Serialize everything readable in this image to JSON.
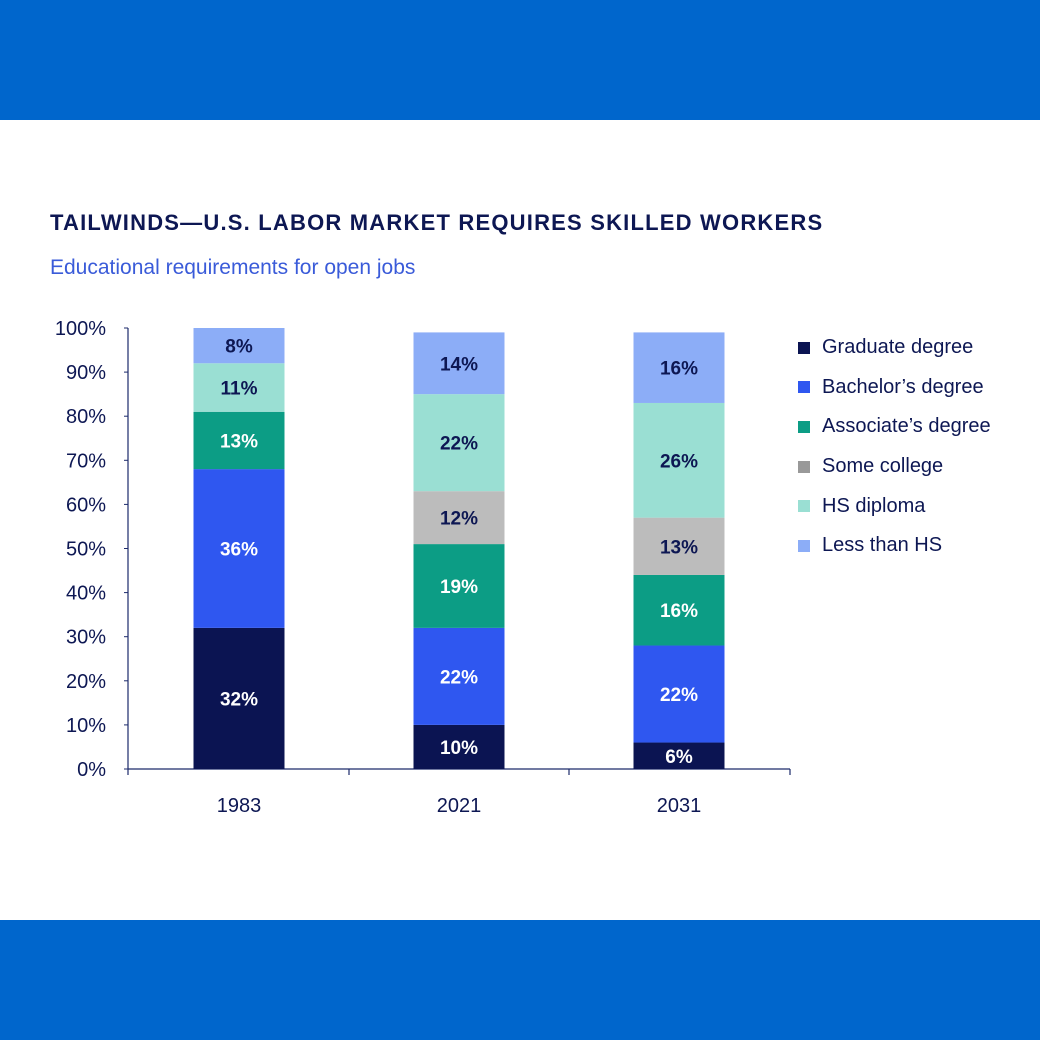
{
  "header": {
    "title": "TAILWINDS—U.S. LABOR MARKET REQUIRES SKILLED WORKERS",
    "subtitle": "Educational requirements for open jobs"
  },
  "colors": {
    "band": "#0066cc",
    "axis": "#1c2a6b",
    "text_dark": "#0d1753"
  },
  "chart_data": {
    "type": "bar",
    "stacked": true,
    "title": "TAILWINDS—U.S. LABOR MARKET REQUIRES SKILLED WORKERS",
    "subtitle": "Educational requirements for open jobs",
    "categories": [
      "1983",
      "2021",
      "2031"
    ],
    "y_ticks": [
      "0%",
      "10%",
      "20%",
      "30%",
      "40%",
      "50%",
      "60%",
      "70%",
      "80%",
      "90%",
      "100%"
    ],
    "ylim": [
      0,
      100
    ],
    "grid": false,
    "legend_position": "right",
    "series": [
      {
        "name": "Graduate degree",
        "color": "#0b1452",
        "label_color": "#ffffff",
        "values": [
          32,
          10,
          6
        ],
        "labels": [
          "32%",
          "10%",
          "6%"
        ]
      },
      {
        "name": "Bachelor’s degree",
        "color": "#2f57f0",
        "label_color": "#ffffff",
        "values": [
          36,
          22,
          22
        ],
        "labels": [
          "36%",
          "22%",
          "22%"
        ]
      },
      {
        "name": "Associate’s degree",
        "color": "#0c9d85",
        "label_color": "#ffffff",
        "values": [
          13,
          19,
          16
        ],
        "labels": [
          "13%",
          "19%",
          "16%"
        ]
      },
      {
        "name": "Some college",
        "color": "#bcbcbc",
        "label_color": "#0d1753",
        "values": [
          0,
          12,
          13
        ],
        "labels": [
          "",
          "12%",
          "13%"
        ]
      },
      {
        "name": "HS diploma",
        "color": "#9adfd3",
        "label_color": "#0d1753",
        "values": [
          11,
          22,
          26
        ],
        "labels": [
          "11%",
          "22%",
          "26%"
        ]
      },
      {
        "name": "Less than HS",
        "color": "#8cadf7",
        "label_color": "#0d1753",
        "values": [
          8,
          14,
          16
        ],
        "labels": [
          "8%",
          "14%",
          "16%"
        ]
      }
    ],
    "legend_swatches": [
      "#0b1452",
      "#2f57f0",
      "#0c9d85",
      "#999999",
      "#9adfd3",
      "#8cadf7"
    ]
  }
}
